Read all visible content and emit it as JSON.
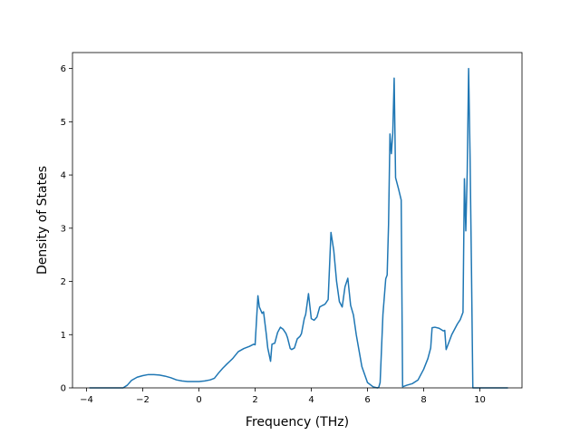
{
  "chart_data": {
    "type": "line",
    "xlabel": "Frequency (THz)",
    "ylabel": "Density of States",
    "xlim": [
      -4.5,
      11.5
    ],
    "ylim": [
      0,
      6.3
    ],
    "xticks": [
      -4,
      -2,
      0,
      2,
      4,
      6,
      8,
      10
    ],
    "yticks": [
      0,
      1,
      2,
      3,
      4,
      5,
      6
    ],
    "xtick_labels": [
      "−4",
      "−2",
      "0",
      "2",
      "4",
      "6",
      "8",
      "10"
    ],
    "ytick_labels": [
      "0",
      "1",
      "2",
      "3",
      "4",
      "5",
      "6"
    ],
    "grid": false,
    "legend": false,
    "colors": {
      "line": "#1f77b4",
      "axes": "#000000",
      "background": "#ffffff"
    },
    "series": [
      {
        "x": [
          -3.9,
          -3.0,
          -2.7,
          -2.55,
          -2.4,
          -2.2,
          -2.0,
          -1.8,
          -1.6,
          -1.4,
          -1.2,
          -1.0,
          -0.8,
          -0.6,
          -0.4,
          -0.2,
          0.0,
          0.2,
          0.4,
          0.55,
          0.7,
          0.85,
          1.0,
          1.1,
          1.2,
          1.4,
          1.6,
          1.8,
          1.95,
          2.0,
          2.1,
          2.15,
          2.25,
          2.3,
          2.4,
          2.45,
          2.55,
          2.6,
          2.7,
          2.8,
          2.9,
          3.0,
          3.1,
          3.15,
          3.25,
          3.3,
          3.4,
          3.5,
          3.6,
          3.65,
          3.75,
          3.8,
          3.9,
          4.0,
          4.1,
          4.2,
          4.3,
          4.4,
          4.45,
          4.5,
          4.6,
          4.7,
          4.8,
          4.9,
          5.0,
          5.1,
          5.2,
          5.3,
          5.4,
          5.5,
          5.6,
          5.8,
          6.0,
          6.2,
          6.35,
          6.4,
          6.45,
          6.55,
          6.65,
          6.7,
          6.75,
          6.8,
          6.85,
          6.9,
          6.95,
          7.0,
          7.1,
          7.2,
          7.25,
          7.4,
          7.6,
          7.8,
          8.0,
          8.15,
          8.25,
          8.3,
          8.4,
          8.55,
          8.7,
          8.75,
          8.8,
          9.0,
          9.2,
          9.3,
          9.4,
          9.45,
          9.5,
          9.55,
          9.6,
          9.65,
          9.7,
          9.75,
          9.8,
          10.0,
          11.0
        ],
        "y": [
          0.0,
          0.0,
          0.0,
          0.05,
          0.14,
          0.2,
          0.23,
          0.25,
          0.25,
          0.24,
          0.22,
          0.19,
          0.15,
          0.13,
          0.12,
          0.12,
          0.12,
          0.13,
          0.15,
          0.18,
          0.28,
          0.37,
          0.45,
          0.5,
          0.55,
          0.68,
          0.74,
          0.78,
          0.82,
          0.81,
          1.73,
          1.52,
          1.4,
          1.43,
          1.0,
          0.75,
          0.5,
          0.82,
          0.84,
          1.04,
          1.14,
          1.1,
          1.02,
          0.95,
          0.74,
          0.72,
          0.75,
          0.92,
          0.97,
          1.02,
          1.3,
          1.38,
          1.77,
          1.3,
          1.27,
          1.33,
          1.52,
          1.55,
          1.56,
          1.58,
          1.66,
          2.92,
          2.58,
          2.0,
          1.62,
          1.52,
          1.9,
          2.06,
          1.55,
          1.37,
          1.0,
          0.4,
          0.1,
          0.02,
          0.0,
          0.01,
          0.1,
          1.38,
          2.05,
          2.12,
          3.07,
          4.77,
          4.4,
          4.78,
          5.82,
          3.95,
          3.75,
          3.53,
          0.02,
          0.05,
          0.08,
          0.15,
          0.35,
          0.55,
          0.75,
          1.13,
          1.14,
          1.12,
          1.07,
          1.08,
          0.72,
          1.0,
          1.2,
          1.28,
          1.42,
          3.93,
          2.95,
          4.05,
          6.0,
          4.4,
          2.3,
          0.0,
          0.0,
          0.0,
          0.0
        ]
      }
    ]
  }
}
